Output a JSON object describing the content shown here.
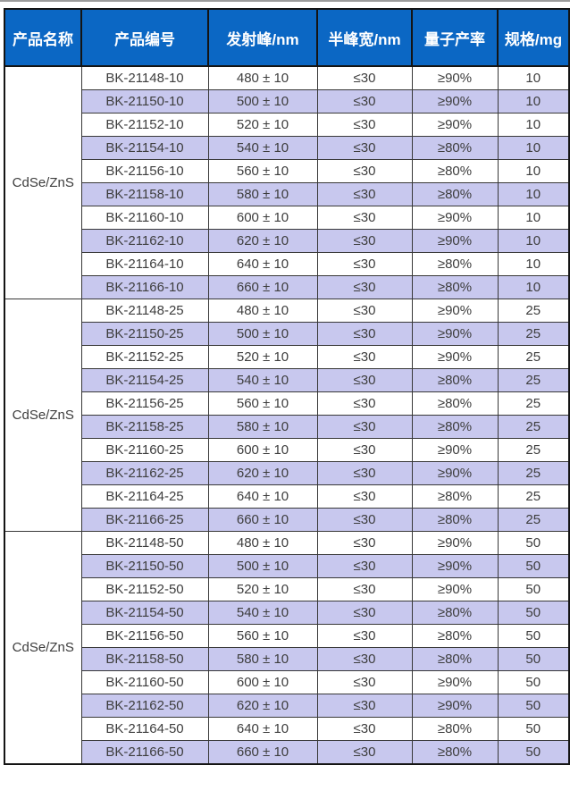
{
  "colors": {
    "header_bg": "#0b67c4",
    "header_text": "#ffffff",
    "row_bg": "#ffffff",
    "row_alt_bg": "#c8c8ee",
    "body_text": "#3d3d3d",
    "border": "#383838"
  },
  "table": {
    "columns": [
      "产品名称",
      "产品编号",
      "发射峰/nm",
      "半峰宽/nm",
      "量子产率",
      "规格/mg"
    ],
    "groups": [
      {
        "name": "CdSe/ZnS",
        "rows": [
          [
            "BK-21148-10",
            "480 ± 10",
            "≤30",
            "≥90%",
            "10"
          ],
          [
            "BK-21150-10",
            "500 ± 10",
            "≤30",
            "≥90%",
            "10"
          ],
          [
            "BK-21152-10",
            "520 ± 10",
            "≤30",
            "≥90%",
            "10"
          ],
          [
            "BK-21154-10",
            "540 ± 10",
            "≤30",
            "≥80%",
            "10"
          ],
          [
            "BK-21156-10",
            "560 ± 10",
            "≤30",
            "≥80%",
            "10"
          ],
          [
            "BK-21158-10",
            "580 ± 10",
            "≤30",
            "≥80%",
            "10"
          ],
          [
            "BK-21160-10",
            "600 ± 10",
            "≤30",
            "≥90%",
            "10"
          ],
          [
            "BK-21162-10",
            "620 ± 10",
            "≤30",
            "≥90%",
            "10"
          ],
          [
            "BK-21164-10",
            "640 ± 10",
            "≤30",
            "≥80%",
            "10"
          ],
          [
            "BK-21166-10",
            "660 ± 10",
            "≤30",
            "≥80%",
            "10"
          ]
        ]
      },
      {
        "name": "CdSe/ZnS",
        "rows": [
          [
            "BK-21148-25",
            "480 ± 10",
            "≤30",
            "≥90%",
            "25"
          ],
          [
            "BK-21150-25",
            "500 ± 10",
            "≤30",
            "≥90%",
            "25"
          ],
          [
            "BK-21152-25",
            "520 ± 10",
            "≤30",
            "≥90%",
            "25"
          ],
          [
            "BK-21154-25",
            "540 ± 10",
            "≤30",
            "≥80%",
            "25"
          ],
          [
            "BK-21156-25",
            "560 ± 10",
            "≤30",
            "≥80%",
            "25"
          ],
          [
            "BK-21158-25",
            "580 ± 10",
            "≤30",
            "≥80%",
            "25"
          ],
          [
            "BK-21160-25",
            "600 ± 10",
            "≤30",
            "≥90%",
            "25"
          ],
          [
            "BK-21162-25",
            "620 ± 10",
            "≤30",
            "≥90%",
            "25"
          ],
          [
            "BK-21164-25",
            "640 ± 10",
            "≤30",
            "≥80%",
            "25"
          ],
          [
            "BK-21166-25",
            "660 ± 10",
            "≤30",
            "≥80%",
            "25"
          ]
        ]
      },
      {
        "name": "CdSe/ZnS",
        "rows": [
          [
            "BK-21148-50",
            "480 ± 10",
            "≤30",
            "≥90%",
            "50"
          ],
          [
            "BK-21150-50",
            "500 ± 10",
            "≤30",
            "≥90%",
            "50"
          ],
          [
            "BK-21152-50",
            "520 ± 10",
            "≤30",
            "≥90%",
            "50"
          ],
          [
            "BK-21154-50",
            "540 ± 10",
            "≤30",
            "≥80%",
            "50"
          ],
          [
            "BK-21156-50",
            "560 ± 10",
            "≤30",
            "≥80%",
            "50"
          ],
          [
            "BK-21158-50",
            "580 ± 10",
            "≤30",
            "≥80%",
            "50"
          ],
          [
            "BK-21160-50",
            "600 ± 10",
            "≤30",
            "≥90%",
            "50"
          ],
          [
            "BK-21162-50",
            "620 ± 10",
            "≤30",
            "≥90%",
            "50"
          ],
          [
            "BK-21164-50",
            "640 ± 10",
            "≤30",
            "≥80%",
            "50"
          ],
          [
            "BK-21166-50",
            "660 ± 10",
            "≤30",
            "≥80%",
            "50"
          ]
        ]
      }
    ]
  }
}
